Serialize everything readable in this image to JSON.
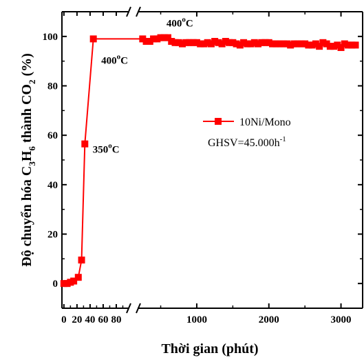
{
  "chart_data": {
    "type": "line",
    "xlabel": "Thời gian (phút)",
    "ylabel_parts": [
      "Độ chuyển hóa C",
      "3",
      "H",
      "6",
      " thành CO",
      "2",
      " (%)"
    ],
    "ylim": [
      -10,
      110
    ],
    "y_ticks": [
      0,
      20,
      40,
      60,
      80,
      100
    ],
    "x_axis_break": true,
    "x_left_segment": {
      "xlim": [
        -3,
        100
      ],
      "tick_values": [
        0,
        20,
        40,
        60,
        80
      ],
      "tick_labels": [
        "0",
        "20",
        "40",
        "60",
        "80"
      ]
    },
    "x_right_segment": {
      "xlim": [
        180,
        3300
      ],
      "tick_values": [
        1000,
        2000,
        3000
      ],
      "tick_labels": [
        "1000",
        "2000",
        "3000"
      ]
    },
    "series": [
      {
        "name": "10Ni/Mono",
        "color": "#ff0000",
        "marker": "square",
        "points_left": [
          [
            0,
            0
          ],
          [
            5,
            0
          ],
          [
            10,
            0.5
          ],
          [
            15,
            1
          ],
          [
            22,
            2.5
          ],
          [
            27,
            9.5
          ],
          [
            32,
            56.5
          ],
          [
            45,
            99
          ]
        ],
        "points_right": [
          [
            250,
            99
          ],
          [
            300,
            98
          ],
          [
            350,
            98
          ],
          [
            400,
            99
          ],
          [
            450,
            99
          ],
          [
            500,
            99.5
          ],
          [
            550,
            99.5
          ],
          [
            600,
            99.5
          ],
          [
            650,
            98
          ],
          [
            700,
            97.5
          ],
          [
            750,
            97.5
          ],
          [
            800,
            97
          ],
          [
            850,
            97.5
          ],
          [
            900,
            97.5
          ],
          [
            950,
            97.5
          ],
          [
            1000,
            97.5
          ],
          [
            1050,
            97
          ],
          [
            1100,
            97
          ],
          [
            1150,
            97.5
          ],
          [
            1200,
            97
          ],
          [
            1250,
            98
          ],
          [
            1300,
            97.5
          ],
          [
            1350,
            97
          ],
          [
            1400,
            98
          ],
          [
            1450,
            97.5
          ],
          [
            1500,
            97.5
          ],
          [
            1550,
            97
          ],
          [
            1600,
            96.5
          ],
          [
            1650,
            97.5
          ],
          [
            1700,
            97
          ],
          [
            1750,
            97
          ],
          [
            1800,
            97.5
          ],
          [
            1850,
            97
          ],
          [
            1900,
            97.5
          ],
          [
            1950,
            97.5
          ],
          [
            2000,
            97.5
          ],
          [
            2050,
            97
          ],
          [
            2100,
            97
          ],
          [
            2150,
            97
          ],
          [
            2200,
            97
          ],
          [
            2250,
            97
          ],
          [
            2300,
            96.5
          ],
          [
            2350,
            97
          ],
          [
            2400,
            97
          ],
          [
            2450,
            97
          ],
          [
            2500,
            97
          ],
          [
            2550,
            96.5
          ],
          [
            2600,
            96.5
          ],
          [
            2650,
            97
          ],
          [
            2700,
            96
          ],
          [
            2750,
            97.5
          ],
          [
            2800,
            97
          ],
          [
            2850,
            96
          ],
          [
            2900,
            96
          ],
          [
            2950,
            96.5
          ],
          [
            3000,
            95.5
          ],
          [
            3050,
            97
          ],
          [
            3100,
            96.5
          ],
          [
            3150,
            96.5
          ],
          [
            3200,
            96.5
          ]
        ]
      }
    ],
    "annotations": [
      {
        "text": "400",
        "sup": "o",
        "unit": "C",
        "x_segment": "right",
        "x": 580,
        "y": 104
      },
      {
        "text": "400",
        "sup": "o",
        "unit": "C",
        "x_segment": "left",
        "x": 57,
        "y": 89
      },
      {
        "text": "350",
        "sup": "o",
        "unit": "C",
        "x_segment": "left",
        "x": 44,
        "y": 53
      }
    ],
    "legend": {
      "placement": "center-right",
      "series_label": "10Ni/Mono",
      "ghsv_prefix": "GHSV=45.000h",
      "ghsv_sup": "-1"
    }
  }
}
